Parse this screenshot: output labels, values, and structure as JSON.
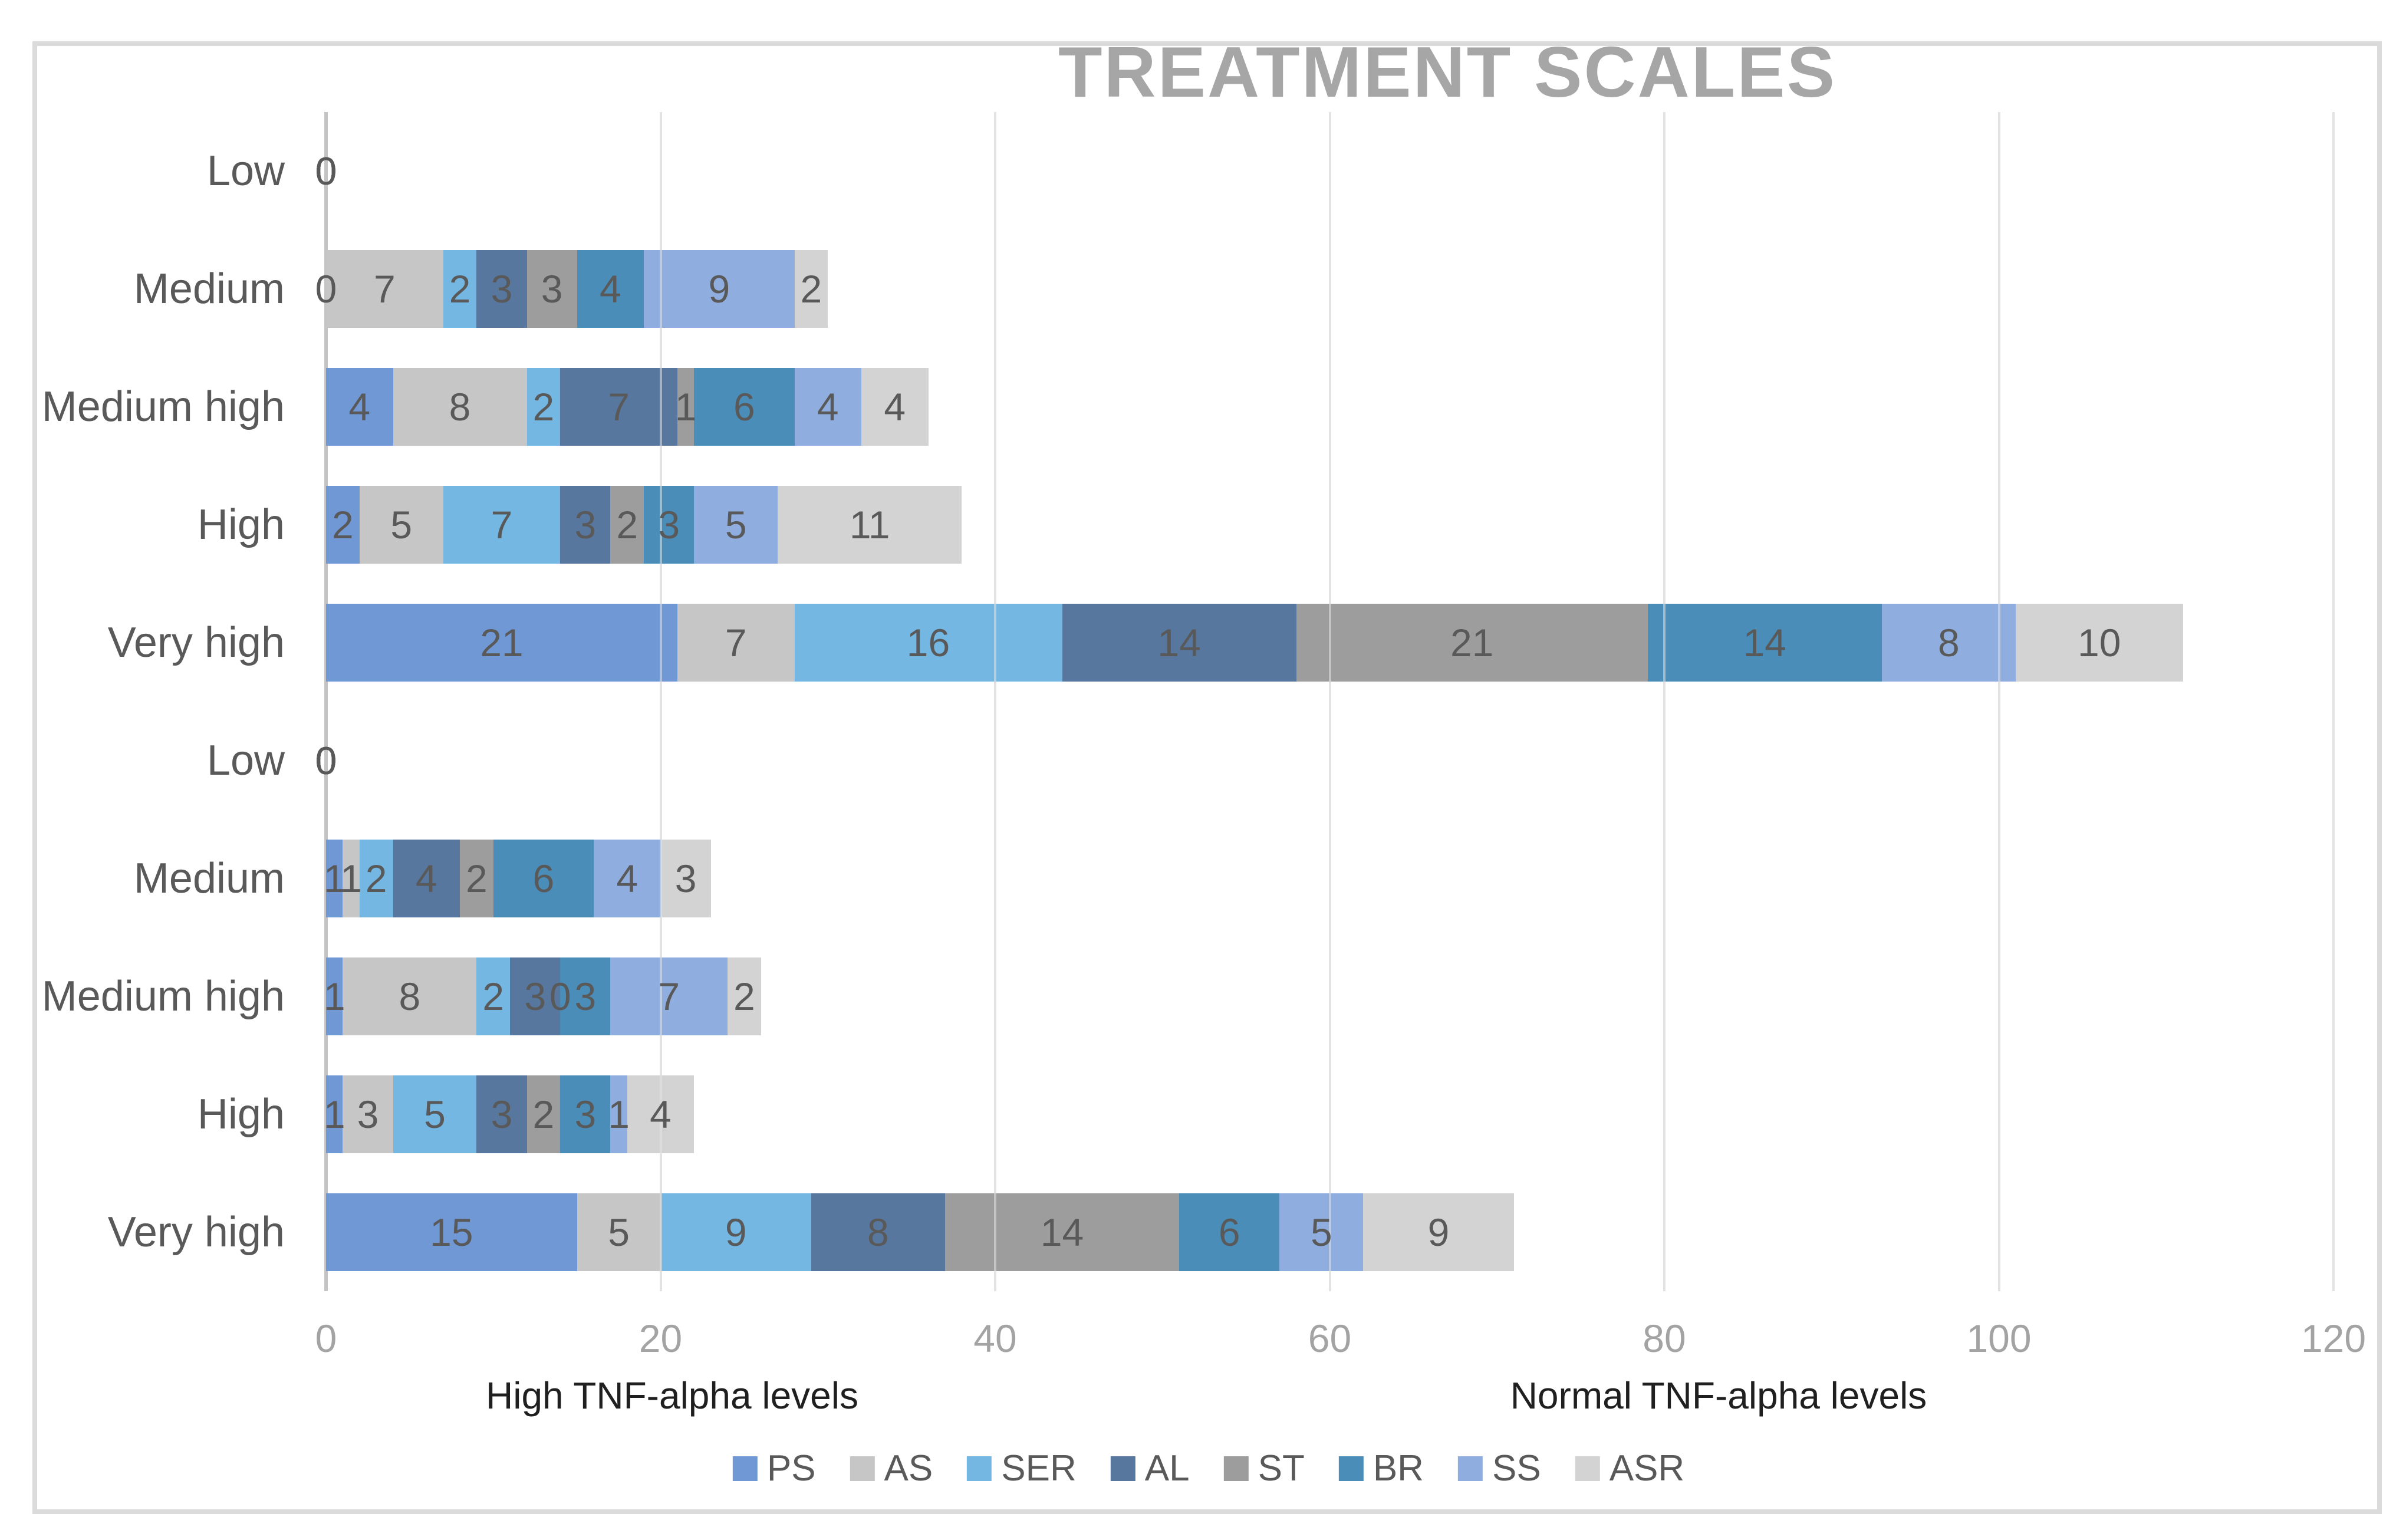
{
  "chart_data": {
    "type": "bar",
    "orientation": "horizontal",
    "stacked": true,
    "title": "TREATMENT SCALES",
    "title_color": "#A6A6A6",
    "categories": [
      "Low",
      "Medium",
      "Medium high",
      "High",
      "Very high",
      "Low",
      "Medium",
      "Medium high",
      "High",
      "Very high"
    ],
    "group_captions": [
      {
        "label": "High TNF-alpha levels",
        "side": "left"
      },
      {
        "label": "Normal TNF-alpha levels",
        "side": "right"
      }
    ],
    "series": [
      {
        "name": "PS",
        "color": "#6F98D4",
        "values": [
          0,
          0,
          4,
          2,
          21,
          0,
          1,
          1,
          1,
          15
        ]
      },
      {
        "name": "AS",
        "color": "#C6C6C6",
        "values": [
          0,
          7,
          8,
          5,
          7,
          0,
          1,
          8,
          3,
          5
        ]
      },
      {
        "name": "SER",
        "color": "#74B7E3",
        "values": [
          0,
          2,
          2,
          7,
          16,
          0,
          2,
          2,
          5,
          9
        ]
      },
      {
        "name": "AL",
        "color": "#57779F",
        "values": [
          0,
          3,
          7,
          3,
          14,
          0,
          4,
          3,
          3,
          8
        ]
      },
      {
        "name": "ST",
        "color": "#9D9D9D",
        "values": [
          0,
          3,
          1,
          2,
          21,
          0,
          2,
          0,
          2,
          14
        ]
      },
      {
        "name": "BR",
        "color": "#4A8DB8",
        "values": [
          0,
          4,
          6,
          3,
          14,
          0,
          6,
          3,
          3,
          6
        ]
      },
      {
        "name": "SS",
        "color": "#8FADDE",
        "values": [
          0,
          9,
          4,
          5,
          8,
          0,
          4,
          7,
          1,
          5
        ]
      },
      {
        "name": "ASR",
        "color": "#D3D3D3",
        "values": [
          0,
          2,
          4,
          11,
          10,
          0,
          3,
          2,
          4,
          9
        ]
      }
    ],
    "x_axis": {
      "min": 0,
      "max": 120,
      "ticks": [
        0,
        20,
        40,
        60,
        80,
        100,
        120
      ]
    },
    "grid": true,
    "legend_position": "bottom",
    "data_label_color": "#595959"
  }
}
